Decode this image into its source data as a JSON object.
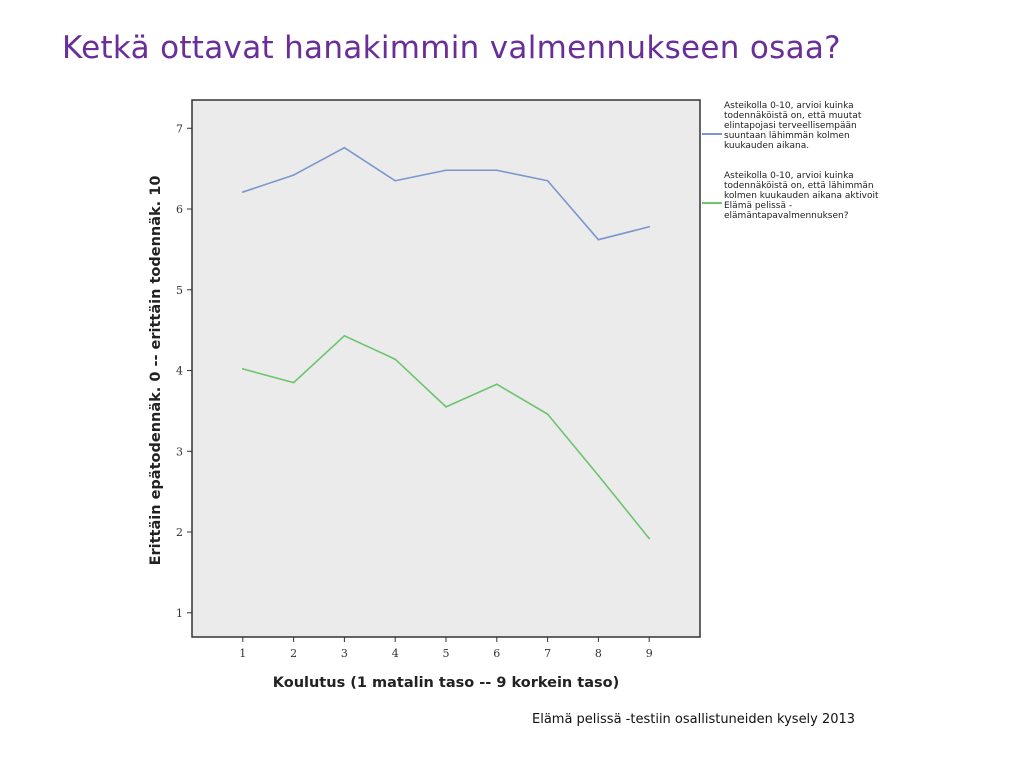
{
  "slide": {
    "title": "Ketkä ottavat hanakimmin valmennukseen osaa?",
    "source": "Elämä pelissä -testiin osallistuneiden kysely 2013"
  },
  "colors": {
    "title": "#6a2e98",
    "plot_background": "#ebebeb",
    "series_1": "#7b97cc",
    "series_2": "#6cc46f"
  },
  "chart_data": {
    "type": "line",
    "x": [
      1,
      2,
      3,
      4,
      5,
      6,
      7,
      8,
      9
    ],
    "x_tick_labels": [
      "1",
      "2",
      "3",
      "4",
      "5",
      "6",
      "7",
      "8",
      "9"
    ],
    "xlabel": "Koulutus (1 matalin taso -- 9 korkein taso)",
    "ylabel": "Erittäin epätodennäk. 0 -- erittäin todennäk. 10",
    "y_ticks": [
      1,
      2,
      3,
      4,
      5,
      6,
      7
    ],
    "y_tick_labels": [
      "1",
      "2",
      "3",
      "4",
      "5",
      "6",
      "7"
    ],
    "xlim": [
      0,
      10
    ],
    "ylim": [
      0.7,
      7.35
    ],
    "grid": false,
    "legend_position": "right",
    "series": [
      {
        "name": "Asteikolla 0-10, arvioi kuinka todennäköistä on, että muutat elintapojasi terveellisempään suuntaan lähimmän kolmen kuukauden aikana.",
        "color": "#7b97cc",
        "values": [
          6.21,
          6.42,
          6.76,
          6.35,
          6.48,
          6.48,
          6.35,
          5.62,
          5.78
        ]
      },
      {
        "name": "Asteikolla 0-10, arvioi kuinka todennäköistä on, että lähimmän kolmen kuukauden aikana aktivoit Elämä pelissä -elämäntapavalmennuksen?",
        "color": "#6cc46f",
        "values": [
          4.02,
          3.85,
          4.43,
          4.14,
          3.55,
          3.83,
          3.46,
          2.7,
          1.92
        ]
      }
    ]
  }
}
